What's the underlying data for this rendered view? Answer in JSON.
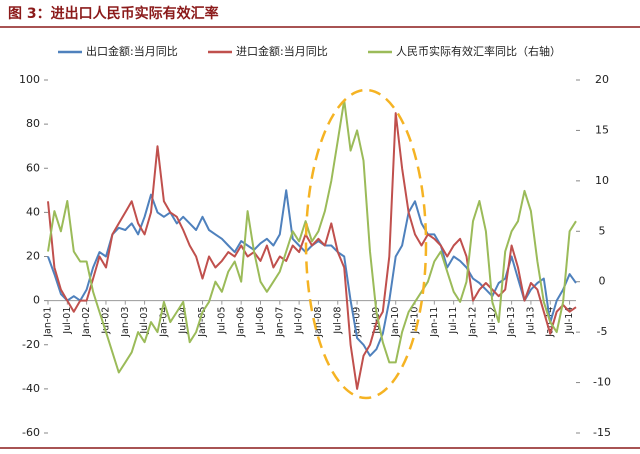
{
  "chart_data": {
    "type": "line",
    "title": "图 3：进出口人民币实际有效汇率",
    "legend": "top",
    "categories": [
      "Jan-01",
      null,
      null,
      "Jul-01",
      null,
      null,
      "Jan-02",
      null,
      null,
      "Jul-02",
      null,
      null,
      "Jan-03",
      null,
      null,
      "Jul-03",
      null,
      null,
      "Jan-04",
      null,
      null,
      "Jul-04",
      null,
      null,
      "Jan-05",
      null,
      null,
      "Jul-05",
      null,
      null,
      "Jan-06",
      null,
      null,
      "Jul-06",
      null,
      null,
      "Jan-07",
      null,
      null,
      "Jul-07",
      null,
      null,
      "Jan-08",
      null,
      null,
      "Jul-08",
      null,
      null,
      "Jan-09",
      null,
      null,
      "Jul-09",
      null,
      null,
      "Jan-10",
      null,
      null,
      "Jul-10",
      null,
      null,
      "Jan-11",
      null,
      null,
      "Jul-11",
      null,
      null,
      "Jan-12",
      null,
      null,
      "Jul-12",
      null,
      null,
      "Jan-13",
      null,
      null,
      "Jul-13",
      null,
      null,
      "Jan-14",
      null,
      null,
      "Jul-14",
      null
    ],
    "series": [
      {
        "name": "出口金额:当月同比",
        "color": "#4f81bd",
        "values": [
          20,
          12,
          3,
          0,
          2,
          0,
          5,
          15,
          22,
          20,
          30,
          33,
          32,
          35,
          30,
          38,
          48,
          40,
          38,
          40,
          35,
          38,
          35,
          32,
          38,
          32,
          30,
          28,
          25,
          22,
          27,
          25,
          23,
          26,
          28,
          25,
          30,
          50,
          28,
          25,
          22,
          25,
          27,
          25,
          25,
          22,
          20,
          0,
          -17,
          -20,
          -25,
          -22,
          -15,
          0,
          20,
          25,
          40,
          45,
          35,
          30,
          30,
          25,
          15,
          20,
          18,
          15,
          10,
          8,
          5,
          2,
          8,
          10,
          20,
          10,
          0,
          5,
          8,
          10,
          -10,
          0,
          5,
          12,
          8
        ]
      },
      {
        "name": "进口金额:当月同比",
        "color": "#c0504d",
        "values": [
          45,
          15,
          5,
          0,
          -5,
          0,
          0,
          10,
          20,
          15,
          30,
          35,
          40,
          45,
          35,
          30,
          40,
          70,
          45,
          40,
          38,
          32,
          25,
          20,
          10,
          20,
          15,
          18,
          22,
          20,
          25,
          20,
          22,
          18,
          25,
          15,
          20,
          18,
          25,
          22,
          30,
          25,
          28,
          25,
          35,
          22,
          15,
          -20,
          -40,
          -25,
          -20,
          -10,
          -5,
          20,
          85,
          60,
          40,
          30,
          25,
          30,
          28,
          25,
          20,
          25,
          28,
          20,
          0,
          5,
          8,
          5,
          2,
          5,
          25,
          15,
          0,
          8,
          5,
          -5,
          -15,
          -5,
          -2,
          -5,
          -3
        ]
      },
      {
        "name": "人民币实际有效汇率同比（右轴）",
        "color": "#9bbb59",
        "axis": "y2",
        "values": [
          3,
          7,
          5,
          8,
          3,
          2,
          2,
          -1,
          -3,
          -5,
          -7,
          -9,
          -8,
          -7,
          -5,
          -6,
          -4,
          -5,
          -2,
          -4,
          -3,
          -2,
          -6,
          -5,
          -3,
          -2,
          0,
          -1,
          1,
          2,
          0,
          7,
          3,
          0,
          -1,
          0,
          1,
          3,
          5,
          4,
          6,
          4,
          5,
          7,
          10,
          14,
          18,
          13,
          15,
          12,
          3,
          -3,
          -6,
          -8,
          -8,
          -5,
          -3,
          -2,
          -1,
          0,
          2,
          3,
          1,
          -1,
          -2,
          0,
          6,
          8,
          5,
          -2,
          -4,
          3,
          5,
          6,
          9,
          7,
          2,
          -2,
          -4,
          -5,
          -2,
          5,
          6
        ]
      }
    ],
    "ylim": [
      -60,
      100
    ],
    "yticks": [
      -60,
      -40,
      -20,
      0,
      20,
      40,
      60,
      80,
      100
    ],
    "y2lim": [
      -15,
      20
    ],
    "y2ticks": [
      -15,
      -10,
      -5,
      0,
      5,
      10,
      15,
      20
    ]
  }
}
